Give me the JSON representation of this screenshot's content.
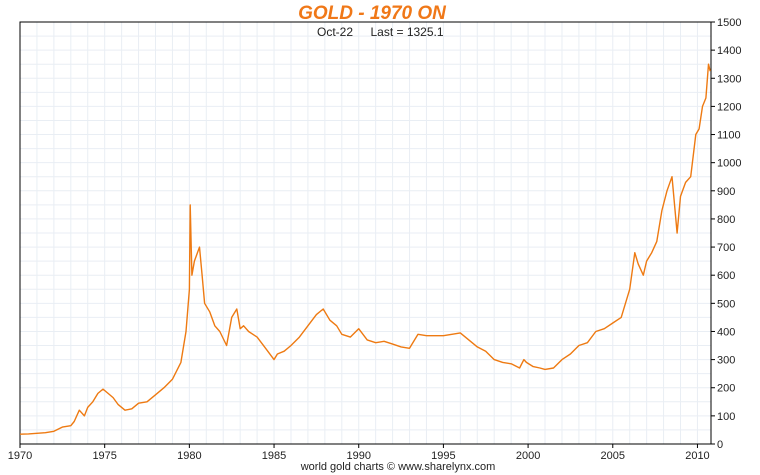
{
  "chart_data": {
    "type": "line",
    "title": "GOLD - 1970 ON",
    "subtitle": {
      "date": "Oct-22",
      "last_label": "Last = 1325.1"
    },
    "source": "world gold charts © www.sharelynx.com",
    "xlabel": "",
    "ylabel": "",
    "xlim": [
      1970.0,
      2010.8
    ],
    "ylim": [
      0,
      1500
    ],
    "x_ticks": [
      1970,
      1975,
      1980,
      1985,
      1990,
      1995,
      2000,
      2005,
      2010
    ],
    "y_ticks": [
      0,
      100,
      200,
      300,
      400,
      500,
      600,
      700,
      800,
      900,
      1000,
      1100,
      1200,
      1300,
      1400,
      1500
    ],
    "grid": true,
    "y_axis_side": "right",
    "colors": {
      "line": "#ee7a12",
      "title": "#f07818",
      "grid": "#e9eef4",
      "axis": "#000000"
    },
    "series": [
      {
        "x": [
          1970.0,
          1970.5,
          1971.0,
          1971.5,
          1972.0,
          1972.5,
          1973.0,
          1973.2,
          1973.5,
          1973.8,
          1974.0,
          1974.3,
          1974.6,
          1974.9,
          1975.2,
          1975.5,
          1975.8,
          1976.2,
          1976.6,
          1977.0,
          1977.5,
          1978.0,
          1978.5,
          1979.0,
          1979.5,
          1979.8,
          1980.0,
          1980.05,
          1980.15,
          1980.3,
          1980.6,
          1980.75,
          1980.9,
          1981.2,
          1981.5,
          1981.8,
          1982.2,
          1982.5,
          1982.8,
          1983.0,
          1983.2,
          1983.5,
          1984.0,
          1984.5,
          1985.0,
          1985.2,
          1985.6,
          1986.0,
          1986.5,
          1987.0,
          1987.5,
          1987.9,
          1988.3,
          1988.7,
          1989.0,
          1989.5,
          1990.0,
          1990.5,
          1991.0,
          1991.5,
          1992.0,
          1992.5,
          1993.0,
          1993.5,
          1994.0,
          1994.5,
          1995.0,
          1995.5,
          1996.0,
          1996.5,
          1997.0,
          1997.5,
          1998.0,
          1998.5,
          1999.0,
          1999.5,
          1999.75,
          1999.9,
          2000.3,
          2000.7,
          2001.0,
          2001.5,
          2002.0,
          2002.5,
          2003.0,
          2003.5,
          2004.0,
          2004.5,
          2005.0,
          2005.5,
          2006.0,
          2006.3,
          2006.5,
          2006.8,
          2007.0,
          2007.3,
          2007.6,
          2007.9,
          2008.2,
          2008.5,
          2008.8,
          2009.0,
          2009.3,
          2009.6,
          2009.9,
          2010.1,
          2010.3,
          2010.5,
          2010.65,
          2010.75
        ],
        "y": [
          35,
          36,
          38,
          40,
          45,
          60,
          65,
          80,
          120,
          100,
          130,
          150,
          180,
          195,
          180,
          165,
          140,
          120,
          125,
          145,
          150,
          175,
          200,
          230,
          290,
          400,
          550,
          850,
          600,
          650,
          700,
          600,
          500,
          470,
          420,
          400,
          350,
          450,
          480,
          410,
          420,
          400,
          380,
          340,
          300,
          320,
          330,
          350,
          380,
          420,
          460,
          480,
          440,
          420,
          390,
          380,
          410,
          370,
          360,
          365,
          355,
          345,
          340,
          390,
          385,
          385,
          385,
          390,
          395,
          370,
          345,
          330,
          300,
          290,
          285,
          270,
          300,
          290,
          275,
          270,
          265,
          270,
          300,
          320,
          350,
          360,
          400,
          410,
          430,
          450,
          550,
          680,
          640,
          600,
          650,
          680,
          720,
          830,
          900,
          950,
          750,
          880,
          930,
          950,
          1100,
          1120,
          1200,
          1230,
          1350,
          1325
        ]
      }
    ]
  }
}
